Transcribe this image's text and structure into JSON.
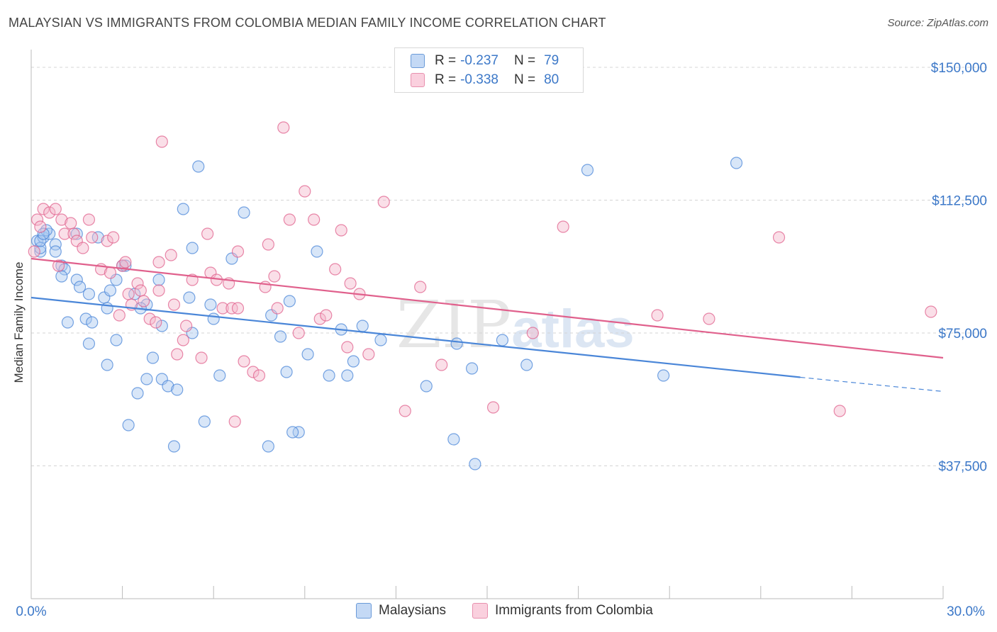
{
  "header": {
    "title": "MALAYSIAN VS IMMIGRANTS FROM COLOMBIA MEDIAN FAMILY INCOME CORRELATION CHART",
    "source": "Source: ZipAtlas.com"
  },
  "legend": {
    "rows": [
      {
        "r_label": "R =",
        "r_value": "-0.237",
        "n_label": "N =",
        "n_value": "79",
        "color": "#a8c8f0"
      },
      {
        "r_label": "R =",
        "r_value": "-0.338",
        "n_label": "N =",
        "n_value": "80",
        "color": "#f5b8cc"
      }
    ]
  },
  "bottom_legend": {
    "items": [
      {
        "label": "Malaysians",
        "color": "#a8c8f0"
      },
      {
        "label": "Immigrants from Colombia",
        "color": "#f5b8cc"
      }
    ]
  },
  "watermark": {
    "zip": "ZIP",
    "atlas": "atlas"
  },
  "chart_data": {
    "type": "scatter",
    "title": "MALAYSIAN VS IMMIGRANTS FROM COLOMBIA MEDIAN FAMILY INCOME CORRELATION CHART",
    "xlabel": "",
    "ylabel": "Median Family Income",
    "xlim": [
      0,
      30
    ],
    "ylim": [
      0,
      155000
    ],
    "x_tick_labels": [
      "0.0%",
      "30.0%"
    ],
    "y_ticks": [
      37500,
      75000,
      112500,
      150000
    ],
    "y_tick_labels": [
      "$37,500",
      "$75,000",
      "$112,500",
      "$150,000"
    ],
    "grid": true,
    "series": [
      {
        "name": "Malaysians",
        "color": "#4a86d8",
        "fill": "#a8c8f0",
        "trend": {
          "x": [
            0,
            25.3
          ],
          "y": [
            85000,
            62500
          ],
          "dashed_to": [
            30,
            58500
          ]
        },
        "points": [
          [
            0.2,
            101000
          ],
          [
            0.3,
            98000
          ],
          [
            0.4,
            102000
          ],
          [
            0.6,
            103000
          ],
          [
            0.5,
            104000
          ],
          [
            0.8,
            100000
          ],
          [
            0.8,
            98000
          ],
          [
            1.0,
            94000
          ],
          [
            1.1,
            93000
          ],
          [
            1.0,
            91000
          ],
          [
            1.2,
            78000
          ],
          [
            1.5,
            103000
          ],
          [
            1.5,
            90000
          ],
          [
            1.6,
            88000
          ],
          [
            1.8,
            79000
          ],
          [
            1.9,
            86000
          ],
          [
            2.2,
            102000
          ],
          [
            2.4,
            85000
          ],
          [
            2.5,
            82000
          ],
          [
            2.0,
            78000
          ],
          [
            2.6,
            87000
          ],
          [
            2.8,
            90000
          ],
          [
            2.8,
            73000
          ],
          [
            3.0,
            94000
          ],
          [
            2.5,
            66000
          ],
          [
            1.9,
            72000
          ],
          [
            3.2,
            49000
          ],
          [
            3.5,
            58000
          ],
          [
            3.4,
            86000
          ],
          [
            3.8,
            83000
          ],
          [
            3.8,
            62000
          ],
          [
            4.0,
            68000
          ],
          [
            4.2,
            90000
          ],
          [
            4.3,
            77000
          ],
          [
            4.3,
            62000
          ],
          [
            4.5,
            60000
          ],
          [
            4.7,
            43000
          ],
          [
            4.8,
            59000
          ],
          [
            5.2,
            85000
          ],
          [
            5.3,
            75000
          ],
          [
            5.0,
            110000
          ],
          [
            5.3,
            99000
          ],
          [
            5.5,
            122000
          ],
          [
            5.7,
            50000
          ],
          [
            5.9,
            83000
          ],
          [
            6.0,
            79000
          ],
          [
            6.2,
            63000
          ],
          [
            6.6,
            96000
          ],
          [
            7.0,
            109000
          ],
          [
            7.8,
            43000
          ],
          [
            7.9,
            80000
          ],
          [
            8.2,
            74000
          ],
          [
            8.4,
            64000
          ],
          [
            8.5,
            84000
          ],
          [
            8.8,
            47000
          ],
          [
            8.6,
            47000
          ],
          [
            9.1,
            69000
          ],
          [
            9.4,
            98000
          ],
          [
            9.8,
            63000
          ],
          [
            10.2,
            76000
          ],
          [
            10.4,
            63000
          ],
          [
            10.6,
            67000
          ],
          [
            10.9,
            77000
          ],
          [
            11.5,
            73000
          ],
          [
            13.0,
            60000
          ],
          [
            13.9,
            45000
          ],
          [
            14.0,
            72000
          ],
          [
            14.5,
            65000
          ],
          [
            14.6,
            38000
          ],
          [
            15.5,
            73000
          ],
          [
            16.3,
            66000
          ],
          [
            18.3,
            121000
          ],
          [
            20.8,
            63000
          ],
          [
            23.2,
            123000
          ],
          [
            0.3,
            99000
          ],
          [
            3.1,
            94000
          ],
          [
            0.3,
            101000
          ],
          [
            3.6,
            82000
          ],
          [
            0.4,
            103000
          ]
        ]
      },
      {
        "name": "Immigrants from Colombia",
        "color": "#e0608c",
        "fill": "#f5b8cc",
        "trend": {
          "x": [
            0,
            30
          ],
          "y": [
            96000,
            68000
          ]
        },
        "points": [
          [
            0.2,
            107000
          ],
          [
            0.4,
            110000
          ],
          [
            0.6,
            109000
          ],
          [
            0.8,
            110000
          ],
          [
            0.9,
            94000
          ],
          [
            1.0,
            107000
          ],
          [
            1.1,
            103000
          ],
          [
            1.3,
            106000
          ],
          [
            1.4,
            103000
          ],
          [
            1.5,
            101000
          ],
          [
            1.7,
            99000
          ],
          [
            1.9,
            107000
          ],
          [
            2.0,
            102000
          ],
          [
            2.3,
            93000
          ],
          [
            2.5,
            101000
          ],
          [
            2.6,
            92000
          ],
          [
            2.7,
            102000
          ],
          [
            3.0,
            94000
          ],
          [
            3.1,
            95000
          ],
          [
            3.2,
            86000
          ],
          [
            3.3,
            83000
          ],
          [
            3.5,
            89000
          ],
          [
            3.6,
            87000
          ],
          [
            3.7,
            84000
          ],
          [
            3.9,
            79000
          ],
          [
            4.1,
            78000
          ],
          [
            4.2,
            87000
          ],
          [
            4.2,
            95000
          ],
          [
            4.3,
            129000
          ],
          [
            4.6,
            97000
          ],
          [
            4.7,
            83000
          ],
          [
            4.8,
            69000
          ],
          [
            5.0,
            73000
          ],
          [
            5.1,
            77000
          ],
          [
            5.3,
            90000
          ],
          [
            5.6,
            68000
          ],
          [
            5.8,
            103000
          ],
          [
            5.9,
            92000
          ],
          [
            6.1,
            90000
          ],
          [
            6.3,
            82000
          ],
          [
            6.5,
            89000
          ],
          [
            6.6,
            82000
          ],
          [
            6.7,
            50000
          ],
          [
            6.8,
            82000
          ],
          [
            7.0,
            67000
          ],
          [
            7.3,
            64000
          ],
          [
            7.5,
            63000
          ],
          [
            7.7,
            88000
          ],
          [
            7.8,
            100000
          ],
          [
            8.0,
            91000
          ],
          [
            8.1,
            82000
          ],
          [
            8.3,
            133000
          ],
          [
            8.5,
            107000
          ],
          [
            8.8,
            75000
          ],
          [
            9.0,
            115000
          ],
          [
            9.3,
            107000
          ],
          [
            9.5,
            79000
          ],
          [
            9.7,
            80000
          ],
          [
            10.0,
            93000
          ],
          [
            10.2,
            104000
          ],
          [
            10.4,
            71000
          ],
          [
            10.5,
            89000
          ],
          [
            10.8,
            86000
          ],
          [
            11.1,
            69000
          ],
          [
            11.6,
            112000
          ],
          [
            12.3,
            53000
          ],
          [
            12.8,
            88000
          ],
          [
            13.5,
            66000
          ],
          [
            15.2,
            54000
          ],
          [
            16.5,
            75000
          ],
          [
            17.5,
            105000
          ],
          [
            20.6,
            80000
          ],
          [
            22.3,
            79000
          ],
          [
            24.6,
            102000
          ],
          [
            26.6,
            53000
          ],
          [
            29.6,
            81000
          ],
          [
            0.1,
            98000
          ],
          [
            0.3,
            105000
          ],
          [
            2.9,
            80000
          ],
          [
            6.8,
            98000
          ]
        ]
      }
    ]
  }
}
